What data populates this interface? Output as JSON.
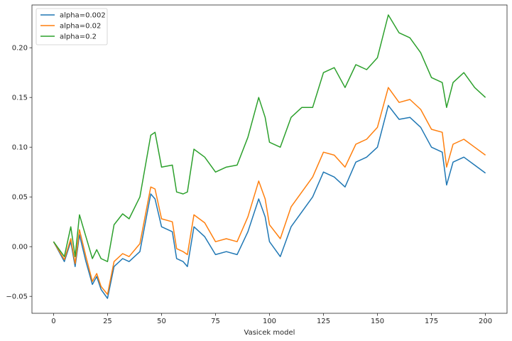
{
  "chart_data": {
    "type": "line",
    "title": "",
    "xlabel": "Vasicek model",
    "ylabel": "",
    "xlim": [
      -10,
      210
    ],
    "ylim": [
      -0.067,
      0.243
    ],
    "xticks": [
      0,
      25,
      50,
      75,
      100,
      125,
      150,
      175,
      200
    ],
    "yticks": [
      -0.05,
      0.0,
      0.05,
      0.1,
      0.15,
      0.2
    ],
    "ytick_labels": [
      "−0.05",
      "0.00",
      "0.05",
      "0.10",
      "0.15",
      "0.20"
    ],
    "grid": false,
    "legend_position": "top-left",
    "x": [
      0,
      5,
      8,
      10,
      12,
      15,
      18,
      20,
      22,
      25,
      28,
      32,
      35,
      40,
      45,
      47,
      50,
      55,
      57,
      60,
      62,
      65,
      70,
      75,
      80,
      85,
      90,
      95,
      98,
      100,
      105,
      110,
      115,
      120,
      125,
      130,
      135,
      140,
      145,
      150,
      155,
      160,
      165,
      170,
      175,
      180,
      182,
      185,
      190,
      195,
      200
    ],
    "series": [
      {
        "name": "alpha=0.002",
        "color": "#1f77b4",
        "values": [
          0.005,
          -0.015,
          0.005,
          -0.02,
          0.012,
          -0.015,
          -0.038,
          -0.03,
          -0.043,
          -0.052,
          -0.02,
          -0.012,
          -0.015,
          -0.005,
          0.053,
          0.048,
          0.02,
          0.015,
          -0.012,
          -0.015,
          -0.02,
          0.02,
          0.01,
          -0.008,
          -0.005,
          -0.008,
          0.015,
          0.048,
          0.03,
          0.005,
          -0.01,
          0.02,
          0.035,
          0.05,
          0.075,
          0.07,
          0.06,
          0.085,
          0.09,
          0.1,
          0.142,
          0.128,
          0.13,
          0.12,
          0.1,
          0.095,
          0.062,
          0.085,
          0.09,
          0.082,
          0.074
        ]
      },
      {
        "name": "alpha=0.02",
        "color": "#ff7f0e",
        "values": [
          0.005,
          -0.013,
          0.008,
          -0.017,
          0.017,
          -0.01,
          -0.035,
          -0.027,
          -0.04,
          -0.048,
          -0.015,
          -0.007,
          -0.01,
          0.003,
          0.06,
          0.058,
          0.028,
          0.025,
          -0.002,
          -0.005,
          -0.008,
          0.032,
          0.024,
          0.005,
          0.008,
          0.005,
          0.03,
          0.066,
          0.048,
          0.022,
          0.008,
          0.04,
          0.055,
          0.07,
          0.095,
          0.092,
          0.08,
          0.103,
          0.108,
          0.12,
          0.16,
          0.145,
          0.148,
          0.138,
          0.118,
          0.115,
          0.08,
          0.103,
          0.108,
          0.1,
          0.092
        ]
      },
      {
        "name": "alpha=0.2",
        "color": "#2ca02c",
        "values": [
          0.005,
          -0.01,
          0.02,
          -0.01,
          0.032,
          0.01,
          -0.012,
          -0.003,
          -0.012,
          -0.015,
          0.022,
          0.033,
          0.028,
          0.05,
          0.112,
          0.115,
          0.08,
          0.082,
          0.055,
          0.053,
          0.055,
          0.098,
          0.09,
          0.075,
          0.08,
          0.082,
          0.11,
          0.15,
          0.13,
          0.105,
          0.1,
          0.13,
          0.14,
          0.14,
          0.175,
          0.18,
          0.16,
          0.183,
          0.178,
          0.19,
          0.233,
          0.215,
          0.21,
          0.195,
          0.17,
          0.165,
          0.14,
          0.165,
          0.175,
          0.16,
          0.15
        ]
      }
    ]
  }
}
